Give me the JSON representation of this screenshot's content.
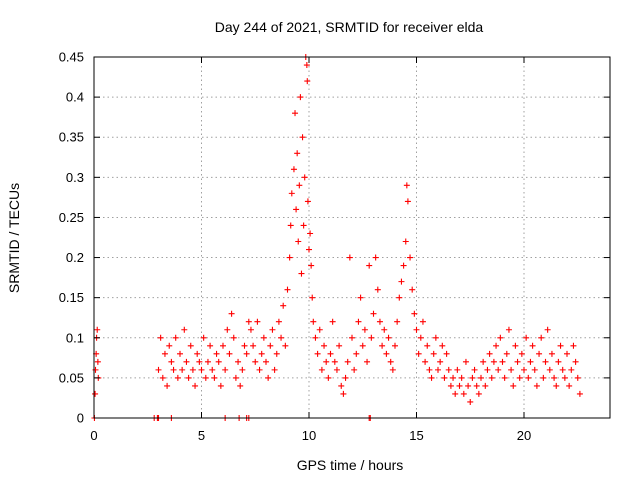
{
  "chart_data": {
    "type": "scatter",
    "title": "Day 244 of 2021, SRMTID for receiver elda",
    "xlabel": "GPS time / hours",
    "ylabel": "SRMTID / TECUs",
    "xlim": [
      0,
      24
    ],
    "ylim": [
      0,
      0.45
    ],
    "xticks": [
      0,
      5,
      10,
      15,
      20
    ],
    "yticks": [
      0,
      0.05,
      0.1,
      0.15,
      0.2,
      0.25,
      0.3,
      0.35,
      0.4,
      0.45
    ],
    "xtick_labels": [
      "0",
      "5",
      "10",
      "15",
      "20"
    ],
    "ytick_labels": [
      "0",
      "0.05",
      "0.1",
      "0.15",
      "0.2",
      "0.25",
      "0.3",
      "0.35",
      "0.4",
      "0.45"
    ],
    "grid": true,
    "marker": "plus",
    "series_color": "#ff0000",
    "series": [
      {
        "name": "SRMTID",
        "points": [
          [
            0.02,
            0.0
          ],
          [
            0.05,
            0.03
          ],
          [
            0.07,
            0.06
          ],
          [
            0.1,
            0.08
          ],
          [
            0.12,
            0.1
          ],
          [
            0.15,
            0.11
          ],
          [
            0.18,
            0.07
          ],
          [
            0.2,
            0.05
          ],
          [
            2.8,
            0.0
          ],
          [
            2.95,
            0.0
          ],
          [
            3.0,
            0.0
          ],
          [
            3.6,
            0.0
          ],
          [
            6.1,
            0.0
          ],
          [
            6.75,
            0.0
          ],
          [
            7.1,
            0.0
          ],
          [
            7.2,
            0.0
          ],
          [
            12.8,
            0.0
          ],
          [
            12.85,
            0.0
          ],
          [
            3.0,
            0.06
          ],
          [
            3.1,
            0.1
          ],
          [
            3.2,
            0.05
          ],
          [
            3.3,
            0.08
          ],
          [
            3.4,
            0.04
          ],
          [
            3.5,
            0.09
          ],
          [
            3.6,
            0.07
          ],
          [
            3.7,
            0.06
          ],
          [
            3.8,
            0.1
          ],
          [
            3.9,
            0.05
          ],
          [
            4.0,
            0.08
          ],
          [
            4.1,
            0.06
          ],
          [
            4.2,
            0.11
          ],
          [
            4.3,
            0.07
          ],
          [
            4.4,
            0.05
          ],
          [
            4.5,
            0.09
          ],
          [
            4.6,
            0.06
          ],
          [
            4.7,
            0.04
          ],
          [
            4.8,
            0.08
          ],
          [
            4.9,
            0.07
          ],
          [
            5.0,
            0.06
          ],
          [
            5.1,
            0.1
          ],
          [
            5.2,
            0.05
          ],
          [
            5.3,
            0.07
          ],
          [
            5.4,
            0.09
          ],
          [
            5.5,
            0.06
          ],
          [
            5.6,
            0.05
          ],
          [
            5.7,
            0.08
          ],
          [
            5.8,
            0.07
          ],
          [
            5.9,
            0.04
          ],
          [
            6.0,
            0.09
          ],
          [
            6.1,
            0.06
          ],
          [
            6.2,
            0.11
          ],
          [
            6.3,
            0.08
          ],
          [
            6.4,
            0.13
          ],
          [
            6.5,
            0.1
          ],
          [
            6.6,
            0.05
          ],
          [
            6.7,
            0.07
          ],
          [
            6.8,
            0.04
          ],
          [
            6.9,
            0.06
          ],
          [
            7.0,
            0.09
          ],
          [
            7.1,
            0.08
          ],
          [
            7.2,
            0.12
          ],
          [
            7.3,
            0.11
          ],
          [
            7.4,
            0.09
          ],
          [
            7.5,
            0.07
          ],
          [
            7.6,
            0.12
          ],
          [
            7.7,
            0.06
          ],
          [
            7.8,
            0.08
          ],
          [
            7.9,
            0.1
          ],
          [
            8.0,
            0.07
          ],
          [
            8.1,
            0.05
          ],
          [
            8.2,
            0.09
          ],
          [
            8.3,
            0.11
          ],
          [
            8.4,
            0.06
          ],
          [
            8.5,
            0.08
          ],
          [
            8.6,
            0.12
          ],
          [
            8.7,
            0.1
          ],
          [
            8.8,
            0.14
          ],
          [
            8.9,
            0.09
          ],
          [
            9.0,
            0.16
          ],
          [
            9.1,
            0.2
          ],
          [
            9.15,
            0.24
          ],
          [
            9.2,
            0.28
          ],
          [
            9.3,
            0.31
          ],
          [
            9.35,
            0.38
          ],
          [
            9.4,
            0.26
          ],
          [
            9.45,
            0.33
          ],
          [
            9.5,
            0.22
          ],
          [
            9.55,
            0.29
          ],
          [
            9.6,
            0.4
          ],
          [
            9.65,
            0.18
          ],
          [
            9.7,
            0.35
          ],
          [
            9.75,
            0.24
          ],
          [
            9.8,
            0.3
          ],
          [
            9.85,
            0.45
          ],
          [
            9.9,
            0.44
          ],
          [
            9.92,
            0.42
          ],
          [
            9.95,
            0.27
          ],
          [
            10.0,
            0.21
          ],
          [
            10.05,
            0.23
          ],
          [
            10.1,
            0.19
          ],
          [
            10.15,
            0.15
          ],
          [
            10.2,
            0.12
          ],
          [
            10.3,
            0.1
          ],
          [
            10.4,
            0.08
          ],
          [
            10.5,
            0.11
          ],
          [
            10.6,
            0.06
          ],
          [
            10.7,
            0.09
          ],
          [
            10.8,
            0.07
          ],
          [
            10.9,
            0.05
          ],
          [
            11.0,
            0.08
          ],
          [
            11.1,
            0.12
          ],
          [
            11.2,
            0.07
          ],
          [
            11.3,
            0.06
          ],
          [
            11.4,
            0.09
          ],
          [
            11.5,
            0.04
          ],
          [
            11.6,
            0.03
          ],
          [
            11.7,
            0.05
          ],
          [
            11.8,
            0.07
          ],
          [
            11.9,
            0.2
          ],
          [
            12.0,
            0.1
          ],
          [
            12.1,
            0.06
          ],
          [
            12.2,
            0.08
          ],
          [
            12.3,
            0.12
          ],
          [
            12.4,
            0.15
          ],
          [
            12.5,
            0.09
          ],
          [
            12.6,
            0.11
          ],
          [
            12.7,
            0.07
          ],
          [
            12.8,
            0.19
          ],
          [
            12.9,
            0.1
          ],
          [
            13.0,
            0.13
          ],
          [
            13.1,
            0.2
          ],
          [
            13.2,
            0.16
          ],
          [
            13.3,
            0.12
          ],
          [
            13.4,
            0.09
          ],
          [
            13.5,
            0.11
          ],
          [
            13.6,
            0.08
          ],
          [
            13.7,
            0.1
          ],
          [
            13.8,
            0.07
          ],
          [
            13.9,
            0.06
          ],
          [
            14.0,
            0.09
          ],
          [
            14.1,
            0.12
          ],
          [
            14.2,
            0.15
          ],
          [
            14.3,
            0.17
          ],
          [
            14.4,
            0.19
          ],
          [
            14.5,
            0.22
          ],
          [
            14.55,
            0.29
          ],
          [
            14.6,
            0.27
          ],
          [
            14.7,
            0.2
          ],
          [
            14.8,
            0.16
          ],
          [
            14.9,
            0.13
          ],
          [
            15.0,
            0.11
          ],
          [
            15.1,
            0.08
          ],
          [
            15.2,
            0.1
          ],
          [
            15.3,
            0.12
          ],
          [
            15.4,
            0.07
          ],
          [
            15.5,
            0.09
          ],
          [
            15.6,
            0.06
          ],
          [
            15.7,
            0.05
          ],
          [
            15.8,
            0.08
          ],
          [
            15.9,
            0.1
          ],
          [
            16.0,
            0.06
          ],
          [
            16.1,
            0.07
          ],
          [
            16.2,
            0.09
          ],
          [
            16.3,
            0.05
          ],
          [
            16.4,
            0.08
          ],
          [
            16.5,
            0.06
          ],
          [
            16.6,
            0.04
          ],
          [
            16.7,
            0.05
          ],
          [
            16.8,
            0.03
          ],
          [
            16.9,
            0.06
          ],
          [
            17.0,
            0.04
          ],
          [
            17.1,
            0.05
          ],
          [
            17.2,
            0.03
          ],
          [
            17.3,
            0.07
          ],
          [
            17.4,
            0.04
          ],
          [
            17.5,
            0.02
          ],
          [
            17.6,
            0.05
          ],
          [
            17.7,
            0.06
          ],
          [
            17.8,
            0.04
          ],
          [
            17.9,
            0.03
          ],
          [
            18.0,
            0.05
          ],
          [
            18.1,
            0.07
          ],
          [
            18.2,
            0.04
          ],
          [
            18.3,
            0.06
          ],
          [
            18.4,
            0.08
          ],
          [
            18.5,
            0.05
          ],
          [
            18.6,
            0.07
          ],
          [
            18.7,
            0.09
          ],
          [
            18.8,
            0.06
          ],
          [
            18.9,
            0.1
          ],
          [
            19.0,
            0.07
          ],
          [
            19.1,
            0.05
          ],
          [
            19.2,
            0.08
          ],
          [
            19.3,
            0.11
          ],
          [
            19.4,
            0.06
          ],
          [
            19.5,
            0.04
          ],
          [
            19.6,
            0.09
          ],
          [
            19.7,
            0.07
          ],
          [
            19.8,
            0.05
          ],
          [
            19.9,
            0.08
          ],
          [
            20.0,
            0.06
          ],
          [
            20.1,
            0.1
          ],
          [
            20.2,
            0.05
          ],
          [
            20.3,
            0.07
          ],
          [
            20.4,
            0.09
          ],
          [
            20.5,
            0.06
          ],
          [
            20.6,
            0.04
          ],
          [
            20.7,
            0.08
          ],
          [
            20.8,
            0.1
          ],
          [
            20.9,
            0.05
          ],
          [
            21.0,
            0.07
          ],
          [
            21.1,
            0.11
          ],
          [
            21.2,
            0.06
          ],
          [
            21.3,
            0.08
          ],
          [
            21.4,
            0.05
          ],
          [
            21.5,
            0.04
          ],
          [
            21.6,
            0.07
          ],
          [
            21.7,
            0.09
          ],
          [
            21.8,
            0.06
          ],
          [
            21.9,
            0.05
          ],
          [
            22.0,
            0.08
          ],
          [
            22.1,
            0.04
          ],
          [
            22.2,
            0.06
          ],
          [
            22.3,
            0.09
          ],
          [
            22.4,
            0.07
          ],
          [
            22.5,
            0.05
          ],
          [
            22.6,
            0.03
          ]
        ]
      }
    ]
  }
}
